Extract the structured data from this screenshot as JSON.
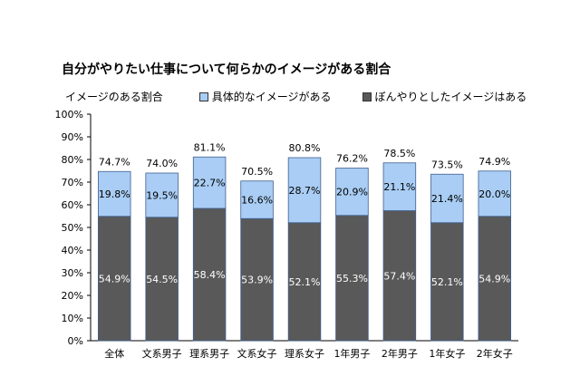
{
  "title": "自分がやりたい仕事について何らかのイメージがある割合",
  "legend": {
    "total_label": "イメージのある割合",
    "specific_label": "具体的なイメージがある",
    "vague_label": "ぼんやりとしたイメージはある"
  },
  "colors": {
    "specific": "#a9cdf4",
    "vague": "#595959",
    "bar_border": "#3f5f8f",
    "axis": "#000000"
  },
  "chart_data": {
    "type": "bar",
    "stacked": true,
    "title": "自分がやりたい仕事について何らかのイメージがある割合",
    "categories": [
      "全体",
      "文系男子",
      "理系男子",
      "文系女子",
      "理系女子",
      "1年男子",
      "2年男子",
      "1年女子",
      "2年女子"
    ],
    "series": [
      {
        "name": "ぼんやりとしたイメージはある",
        "values": [
          54.9,
          54.5,
          58.4,
          53.9,
          52.1,
          55.3,
          57.4,
          52.1,
          54.9
        ]
      },
      {
        "name": "具体的なイメージがある",
        "values": [
          19.8,
          19.5,
          22.7,
          16.6,
          28.7,
          20.9,
          21.1,
          21.4,
          20.0
        ]
      }
    ],
    "totals": [
      74.7,
      74.0,
      81.1,
      70.5,
      80.8,
      76.2,
      78.5,
      73.5,
      74.9
    ],
    "totals_name": "イメージのある割合",
    "yticks": [
      "0%",
      "10%",
      "20%",
      "30%",
      "40%",
      "50%",
      "60%",
      "70%",
      "80%",
      "90%",
      "100%"
    ],
    "ylim": [
      0,
      100
    ],
    "grid": false,
    "legend_position": "top"
  }
}
